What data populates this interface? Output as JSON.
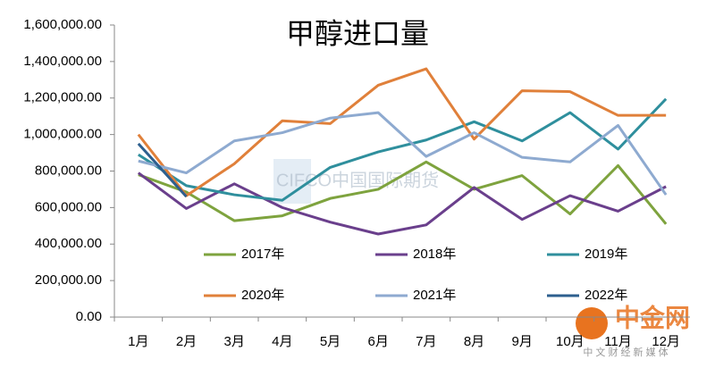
{
  "chart_data": {
    "type": "line",
    "title": "甲醇进口量",
    "categories": [
      "1月",
      "2月",
      "3月",
      "4月",
      "5月",
      "6月",
      "7月",
      "8月",
      "9月",
      "10月",
      "11月",
      "12月"
    ],
    "ylim": [
      0,
      1600000
    ],
    "yticks": [
      {
        "value": 0,
        "label": "0.00"
      },
      {
        "value": 200000,
        "label": "200,000.00"
      },
      {
        "value": 400000,
        "label": "400,000.00"
      },
      {
        "value": 600000,
        "label": "600,000.00"
      },
      {
        "value": 800000,
        "label": "800,000.00"
      },
      {
        "value": 1000000,
        "label": "1,000,000.00"
      },
      {
        "value": 1200000,
        "label": "1,200,000.00"
      },
      {
        "value": 1400000,
        "label": "1,400,000.00"
      },
      {
        "value": 1600000,
        "label": "1,600,000.00"
      }
    ],
    "grid": false,
    "series": [
      {
        "name": "2017年",
        "color": "#7ea33e",
        "values": [
          780000,
          685000,
          528000,
          555000,
          650000,
          700000,
          850000,
          700000,
          775000,
          565000,
          830000,
          510000
        ]
      },
      {
        "name": "2018年",
        "color": "#6a3f8c",
        "values": [
          790000,
          595000,
          730000,
          600000,
          520000,
          455000,
          505000,
          710000,
          535000,
          665000,
          580000,
          715000
        ]
      },
      {
        "name": "2019年",
        "color": "#2f8f9d",
        "values": [
          890000,
          720000,
          670000,
          640000,
          820000,
          905000,
          970000,
          1070000,
          965000,
          1120000,
          920000,
          1195000
        ]
      },
      {
        "name": "2020年",
        "color": "#e0803a",
        "values": [
          1000000,
          665000,
          840000,
          1075000,
          1060000,
          1270000,
          1360000,
          975000,
          1240000,
          1235000,
          1105000,
          1105000
        ]
      },
      {
        "name": "2021年",
        "color": "#8eaad0",
        "values": [
          855000,
          790000,
          965000,
          1010000,
          1090000,
          1120000,
          880000,
          1010000,
          875000,
          850000,
          1050000,
          670000
        ]
      },
      {
        "name": "2022年",
        "color": "#2d5f8e",
        "values": [
          950000,
          660000,
          null,
          null,
          null,
          null,
          null,
          null,
          null,
          null,
          null,
          null
        ]
      }
    ],
    "watermarks": [
      "CIFCO中国国际期货",
      "中金网",
      "中 文 财 经 新 媒 体"
    ]
  }
}
